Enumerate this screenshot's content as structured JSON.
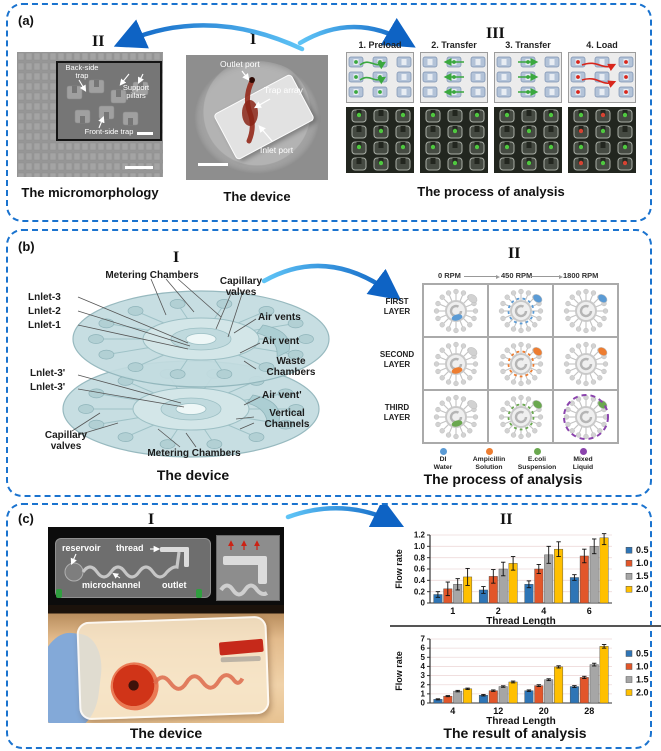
{
  "colors": {
    "panel_border": "#1a73cf",
    "arrow_blue": "#1d8fe0",
    "device_teal": "#c2dcdf",
    "series_palette": [
      "#2e75b6",
      "#e2562a",
      "#a6a6a6",
      "#ffc000"
    ]
  },
  "panel_a": {
    "label": "(a)",
    "numeral_left": "II",
    "numeral_center": "I",
    "numeral_right": "III",
    "micromorphology": {
      "caption": "The micromorphology",
      "back_side": "Back-side trap",
      "support": "Support pillars",
      "front_side": "Front-side trap"
    },
    "device": {
      "caption": "The device",
      "outlet": "Outlet port",
      "trap_array": "Trap array",
      "inlet": "Inlet port"
    },
    "process": {
      "caption": "The process of analysis",
      "steps": [
        "1. Preload",
        "2. Transfer",
        "3. Transfer",
        "4. Load"
      ]
    }
  },
  "panel_b": {
    "label": "(b)",
    "numeral_left": "I",
    "numeral_right": "II",
    "device": {
      "caption": "The device",
      "metering_top": "Metering Chambers",
      "capillary_top": "Capillary valves",
      "inlet3": "Lnlet-3",
      "inlet2": "Lnlet-2",
      "inlet1": "Lnlet-1",
      "air_vents": "Air vents",
      "air_vent": "Air vent",
      "waste": "Waste Chambers",
      "inlet3p": "Lnlet-3'",
      "inlet3p2": "Lnlet-3'",
      "air_ventp": "Air vent'",
      "vertical": "Vertical Channels",
      "capillary_bottom": "Capillary valves",
      "metering_bottom": "Metering Chambers"
    },
    "analysis": {
      "caption": "The process of analysis",
      "columns": [
        "0 RPM",
        "450 RPM",
        "1800 RPM"
      ],
      "rows": [
        "FIRST",
        "SECOND",
        "THIRD"
      ],
      "layer_word": "LAYER",
      "row_colors": [
        "#5b9bd5",
        "#ed7d31",
        "#6aa84f"
      ],
      "mixed_color": "#8b44ad",
      "legend": [
        {
          "line1": "DI",
          "line2": "Water",
          "color": "#5b9bd5"
        },
        {
          "line1": "Ampicillin",
          "line2": "Solution",
          "color": "#ed7d31"
        },
        {
          "line1": "E.coli",
          "line2": "Suspension",
          "color": "#6aa84f"
        },
        {
          "line1": "Mixed",
          "line2": "Liquid",
          "color": "#8b44ad"
        }
      ]
    }
  },
  "panel_c": {
    "label": "(c)",
    "numeral_left": "I",
    "numeral_right": "II",
    "device": {
      "caption": "The device",
      "reservoir": "reservoir",
      "thread": "thread",
      "microchannel": "microchannel",
      "outlet": "outlet"
    },
    "result_caption": "The result of analysis"
  },
  "chart_data": [
    {
      "type": "bar",
      "title": "",
      "categories": [
        "1",
        "2",
        "4",
        "6"
      ],
      "series": [
        {
          "name": "0.5",
          "color": "#2e75b6",
          "values": [
            0.15,
            0.23,
            0.33,
            0.45
          ],
          "errors": [
            0.05,
            0.06,
            0.06,
            0.05
          ]
        },
        {
          "name": "1.0",
          "color": "#e2562a",
          "values": [
            0.25,
            0.47,
            0.6,
            0.83
          ],
          "errors": [
            0.12,
            0.12,
            0.08,
            0.12
          ]
        },
        {
          "name": "1.5",
          "color": "#a6a6a6",
          "values": [
            0.33,
            0.6,
            0.85,
            1.0
          ],
          "errors": [
            0.1,
            0.12,
            0.15,
            0.13
          ]
        },
        {
          "name": "2.0",
          "color": "#ffc000",
          "values": [
            0.46,
            0.7,
            0.95,
            1.15
          ],
          "errors": [
            0.15,
            0.12,
            0.13,
            0.12
          ]
        }
      ],
      "xlabel": "Thread Length",
      "ylabel": "Flow rate",
      "ylim": [
        0,
        1.2
      ],
      "ytick_step": 0.2,
      "grid": true,
      "legend_position": "right"
    },
    {
      "type": "bar",
      "title": "",
      "categories": [
        "4",
        "12",
        "20",
        "28"
      ],
      "series": [
        {
          "name": "0.5",
          "color": "#2e75b6",
          "values": [
            0.4,
            0.85,
            1.35,
            1.8
          ],
          "errors": [
            0.06,
            0.08,
            0.08,
            0.1
          ]
        },
        {
          "name": "1.0",
          "color": "#e2562a",
          "values": [
            0.75,
            1.35,
            1.9,
            2.8
          ],
          "errors": [
            0.06,
            0.08,
            0.1,
            0.12
          ]
        },
        {
          "name": "1.5",
          "color": "#a6a6a6",
          "values": [
            1.3,
            1.8,
            2.55,
            4.2
          ],
          "errors": [
            0.08,
            0.08,
            0.1,
            0.15
          ]
        },
        {
          "name": "2.0",
          "color": "#ffc000",
          "values": [
            1.55,
            2.3,
            3.95,
            6.2
          ],
          "errors": [
            0.08,
            0.1,
            0.12,
            0.2
          ]
        }
      ],
      "xlabel": "Thread Length",
      "ylabel": "Flow rate",
      "ylim": [
        0,
        7
      ],
      "ytick_step": 1,
      "grid": true,
      "legend_position": "right"
    }
  ]
}
